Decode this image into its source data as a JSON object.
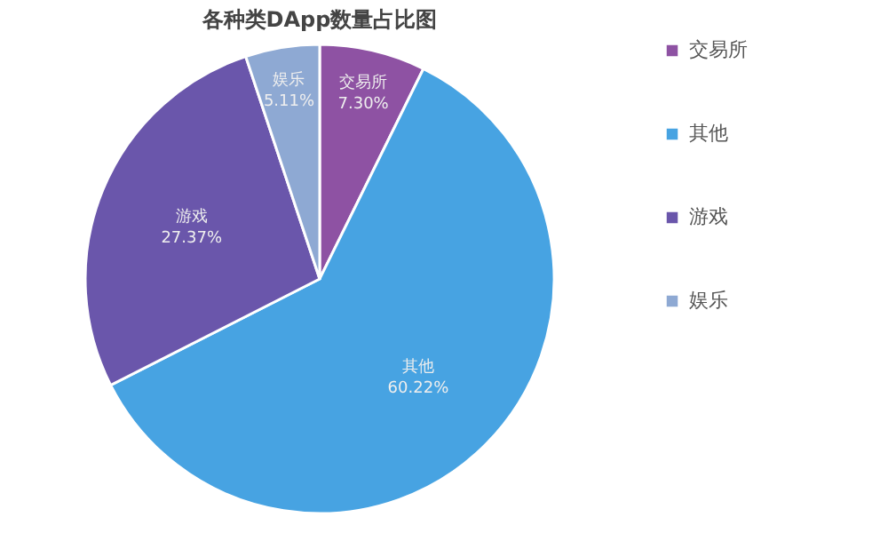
{
  "chart_data": {
    "type": "pie",
    "title": "各种类DApp数量占比图",
    "categories": [
      "交易所",
      "其他",
      "游戏",
      "娱乐"
    ],
    "values": [
      7.3,
      60.22,
      27.37,
      5.11
    ],
    "colors": [
      "#8e52a3",
      "#47a3e2",
      "#6a56ab",
      "#8ea9d3"
    ],
    "value_labels": [
      "7.30%",
      "60.22%",
      "27.37%",
      "5.11%"
    ],
    "legend": "right"
  }
}
